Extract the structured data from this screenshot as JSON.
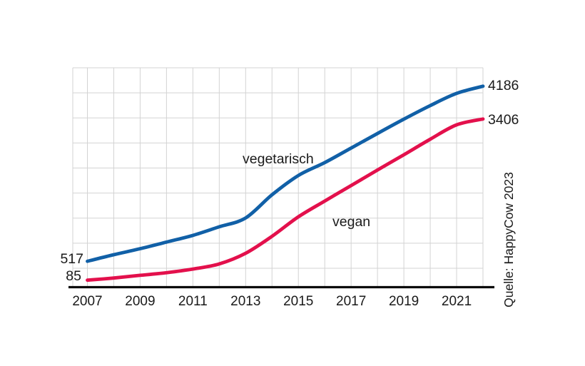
{
  "chart_data": {
    "type": "line",
    "title": "",
    "x": [
      2007,
      2008,
      2009,
      2010,
      2011,
      2012,
      2013,
      2014,
      2015,
      2016,
      2017,
      2018,
      2019,
      2020,
      2021,
      2022
    ],
    "series": [
      {
        "name": "vegetarisch",
        "color": "#1160a7",
        "values": [
          517,
          655,
          780,
          920,
          1060,
          1240,
          1425,
          1910,
          2315,
          2585,
          2890,
          3195,
          3495,
          3780,
          4035,
          4186
        ]
      },
      {
        "name": "vegan",
        "color": "#e3104c",
        "values": [
          85,
          130,
          185,
          240,
          315,
          420,
          640,
          990,
          1390,
          1715,
          2035,
          2355,
          2670,
          2990,
          3285,
          3406
        ]
      }
    ],
    "x_tick_labels": [
      "2007",
      "2009",
      "2011",
      "2013",
      "2015",
      "2017",
      "2019",
      "2021"
    ],
    "labels": {
      "veg_start": "517",
      "veg_end": "4186",
      "vegan_start": "85",
      "vegan_end": "3406",
      "veg_series": "vegetarisch",
      "vegan_series": "vegan"
    },
    "source": "Quelle: HappyCow 2023",
    "grid": true,
    "legend_position": "inline-labels",
    "grid_color": "#d3d3d3",
    "axis_color": "#0a0a0a",
    "text_color": "#1a1a1a",
    "xlim": [
      2006.45,
      2022.4
    ],
    "ylim": [
      0,
      4570
    ],
    "xlabel": "",
    "ylabel": ""
  }
}
